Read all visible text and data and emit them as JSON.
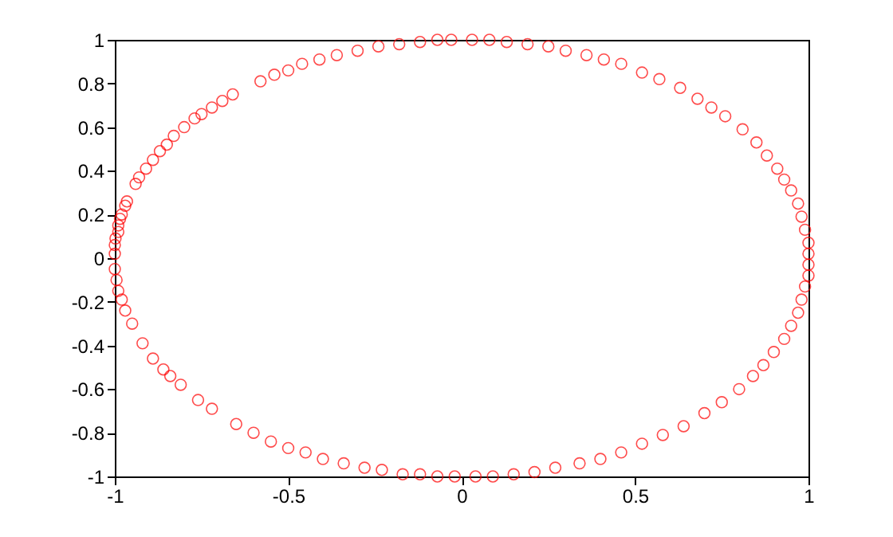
{
  "chart_data": {
    "type": "scatter",
    "color": "#ff0000",
    "marker": "circle",
    "grid": false,
    "x": [
      -1,
      -1,
      -0.998,
      -0.99,
      -0.99,
      -0.985,
      -0.98,
      -0.97,
      -0.965,
      -0.94,
      -0.93,
      -0.91,
      -0.89,
      -0.87,
      -0.85,
      -0.83,
      -0.8,
      -0.77,
      -0.75,
      -0.72,
      -0.69,
      -0.66,
      -0.58,
      -0.54,
      -0.5,
      -0.46,
      -0.41,
      -0.36,
      -0.3,
      -0.24,
      -0.18,
      -0.12,
      -0.07,
      -0.03,
      0.03,
      0.08,
      0.13,
      0.19,
      0.25,
      0.3,
      0.36,
      0.41,
      0.46,
      0.52,
      0.57,
      0.63,
      0.68,
      0.72,
      0.76,
      0.81,
      0.85,
      0.88,
      0.91,
      0.93,
      0.95,
      0.97,
      0.98,
      0.99,
      1,
      1,
      1,
      1,
      0.99,
      0.98,
      0.97,
      0.95,
      0.93,
      0.9,
      0.87,
      0.84,
      0.8,
      0.75,
      0.7,
      0.64,
      0.58,
      0.52,
      0.46,
      0.4,
      0.34,
      0.27,
      0.21,
      0.15,
      0.09,
      0.04,
      -0.02,
      -0.07,
      -0.12,
      -0.17,
      -0.23,
      -0.28,
      -0.34,
      -0.4,
      -0.45,
      -0.5,
      -0.55,
      -0.6,
      -0.65,
      -0.72,
      -0.76,
      -0.81,
      -0.84,
      -0.86,
      -0.89,
      -0.92,
      -0.95,
      -0.97,
      -0.98,
      -0.99,
      -0.995,
      -1
    ],
    "values": [
      0.02,
      0.06,
      0.09,
      0.12,
      0.15,
      0.18,
      0.2,
      0.24,
      0.26,
      0.34,
      0.37,
      0.41,
      0.45,
      0.49,
      0.52,
      0.56,
      0.6,
      0.64,
      0.66,
      0.69,
      0.72,
      0.75,
      0.81,
      0.84,
      0.86,
      0.89,
      0.91,
      0.93,
      0.95,
      0.97,
      0.98,
      0.99,
      1,
      1,
      1,
      1,
      0.99,
      0.98,
      0.97,
      0.95,
      0.93,
      0.91,
      0.89,
      0.85,
      0.82,
      0.78,
      0.73,
      0.69,
      0.65,
      0.59,
      0.53,
      0.47,
      0.41,
      0.36,
      0.31,
      0.25,
      0.19,
      0.13,
      0.07,
      0.02,
      -0.03,
      -0.08,
      -0.13,
      -0.19,
      -0.25,
      -0.31,
      -0.37,
      -0.43,
      -0.49,
      -0.54,
      -0.6,
      -0.66,
      -0.71,
      -0.77,
      -0.81,
      -0.85,
      -0.89,
      -0.92,
      -0.94,
      -0.96,
      -0.98,
      -0.99,
      -1,
      -1,
      -1,
      -1,
      -0.99,
      -0.99,
      -0.97,
      -0.96,
      -0.94,
      -0.92,
      -0.89,
      -0.87,
      -0.84,
      -0.8,
      -0.76,
      -0.69,
      -0.65,
      -0.58,
      -0.54,
      -0.51,
      -0.46,
      -0.39,
      -0.3,
      -0.24,
      -0.19,
      -0.15,
      -0.1,
      -0.05
    ],
    "xlim": [
      -1,
      1
    ],
    "ylim": [
      -1,
      1
    ],
    "xticks": [
      -1,
      -0.5,
      0,
      0.5,
      1
    ],
    "yticks": [
      -1,
      -0.8,
      -0.6,
      -0.4,
      -0.2,
      0,
      0.2,
      0.4,
      0.6,
      0.8,
      1
    ]
  }
}
